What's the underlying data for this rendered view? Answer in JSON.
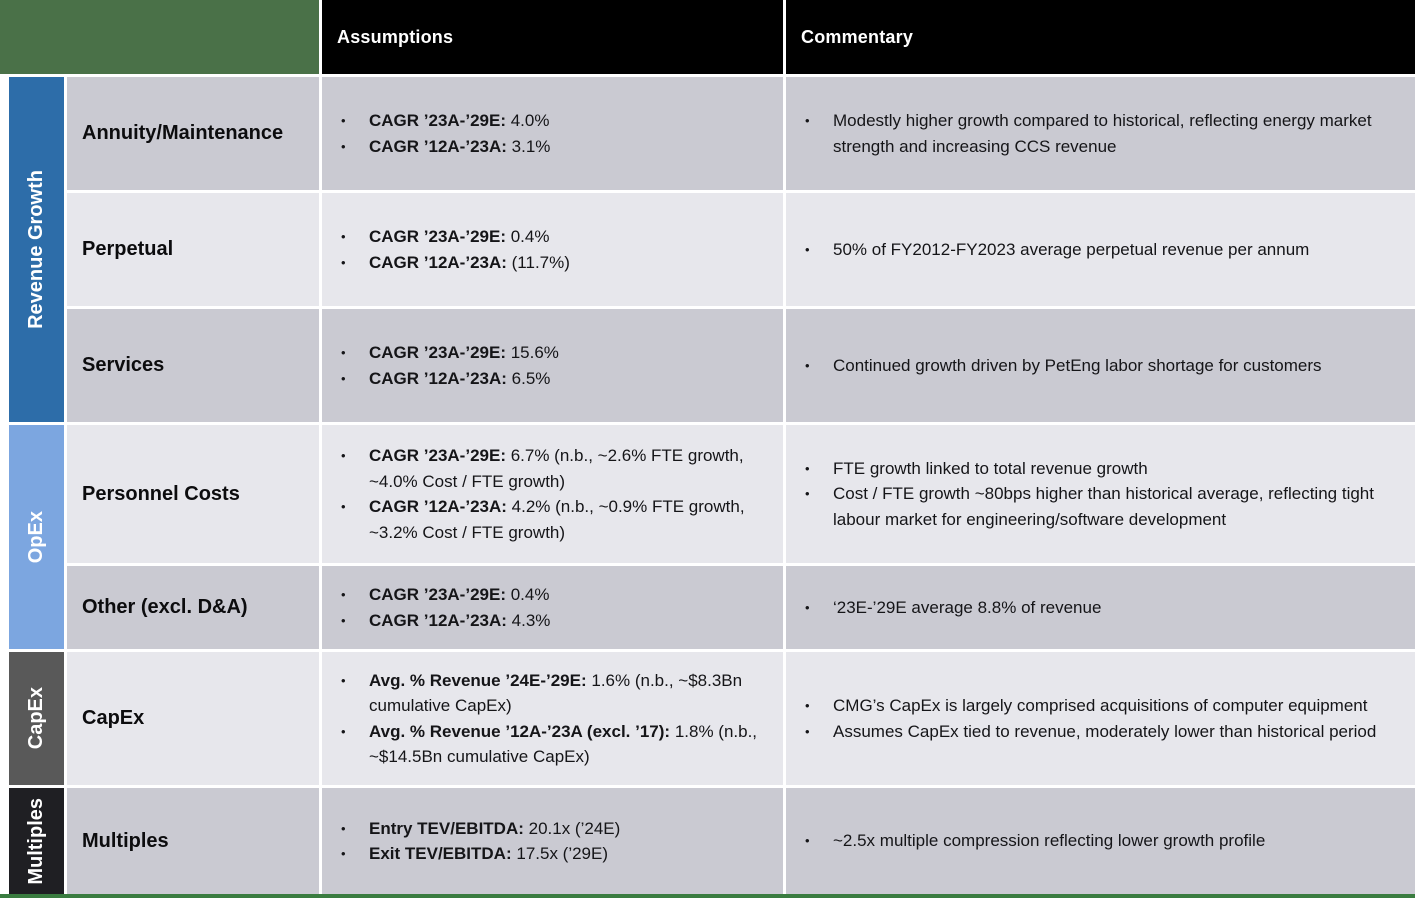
{
  "header": {
    "assumptions": "Assumptions",
    "commentary": "Commentary"
  },
  "colors": {
    "header_bg": "#000000",
    "logo_block_green": "#4a7148",
    "bottom_bar_green": "#3a7c40",
    "row_dark": "#cacad2",
    "row_light": "#e7e7ec"
  },
  "icons": {
    "bullet": "•"
  },
  "groups": [
    {
      "label": "Revenue Growth",
      "color": "#2d6da9",
      "row_span": 3
    },
    {
      "label": "OpEx",
      "color": "#7ca6e0",
      "row_span": 2
    },
    {
      "label": "CapEx",
      "color": "#595959",
      "row_span": 1
    },
    {
      "label": "Multiples",
      "color": "#1f1f23",
      "row_span": 1
    }
  ],
  "rows": [
    {
      "label": "Annuity/Maintenance",
      "assumptions": [
        {
          "bold": "CAGR ’23A-’29E:",
          "text": "4.0%"
        },
        {
          "bold": "CAGR ’12A-’23A:",
          "text": "3.1%"
        }
      ],
      "commentary": [
        "Modestly higher growth compared to historical, reflecting energy market strength and increasing CCS revenue"
      ]
    },
    {
      "label": "Perpetual",
      "assumptions": [
        {
          "bold": "CAGR ’23A-’29E:",
          "text": "0.4%"
        },
        {
          "bold": "CAGR ’12A-’23A:",
          "text": "(11.7%)"
        }
      ],
      "commentary": [
        "50% of FY2012-FY2023 average perpetual revenue per annum"
      ]
    },
    {
      "label": "Services",
      "assumptions": [
        {
          "bold": "CAGR ’23A-’29E:",
          "text": "15.6%"
        },
        {
          "bold": "CAGR ’12A-’23A:",
          "text": "6.5%"
        }
      ],
      "commentary": [
        "Continued growth driven by PetEng labor shortage for customers"
      ]
    },
    {
      "label": "Personnel Costs",
      "assumptions": [
        {
          "bold": "CAGR ’23A-’29E:",
          "text": "6.7% (n.b., ~2.6% FTE growth, ~4.0% Cost / FTE growth)"
        },
        {
          "bold": "CAGR ’12A-’23A:",
          "text": "4.2% (n.b., ~0.9% FTE growth, ~3.2% Cost / FTE growth)"
        }
      ],
      "commentary": [
        "FTE growth linked to total revenue growth",
        "Cost / FTE growth ~80bps higher than historical average, reflecting tight labour market for engineering/software development"
      ]
    },
    {
      "label": "Other (excl. D&A)",
      "assumptions": [
        {
          "bold": "CAGR ’23A-’29E:",
          "text": "0.4%"
        },
        {
          "bold": "CAGR ’12A-’23A:",
          "text": "4.3%"
        }
      ],
      "commentary": [
        "‘23E-’29E average 8.8% of revenue"
      ]
    },
    {
      "label": "CapEx",
      "assumptions": [
        {
          "bold": "Avg. % Revenue ’24E-’29E:",
          "text": "1.6% (n.b., ~$8.3Bn cumulative CapEx)"
        },
        {
          "bold": "Avg. % Revenue ’12A-’23A (excl. ’17):",
          "text": "1.8% (n.b., ~$14.5Bn cumulative CapEx)"
        }
      ],
      "commentary": [
        "CMG’s CapEx is largely comprised acquisitions of computer equipment",
        "Assumes CapEx tied to revenue, moderately lower than historical period"
      ]
    },
    {
      "label": "Multiples",
      "assumptions": [
        {
          "bold": "Entry TEV/EBITDA:",
          "text": "20.1x (’24E)"
        },
        {
          "bold": "Exit TEV/EBITDA:",
          "text": "17.5x (’29E)"
        }
      ],
      "commentary": [
        "~2.5x multiple compression reflecting lower growth profile"
      ]
    }
  ]
}
